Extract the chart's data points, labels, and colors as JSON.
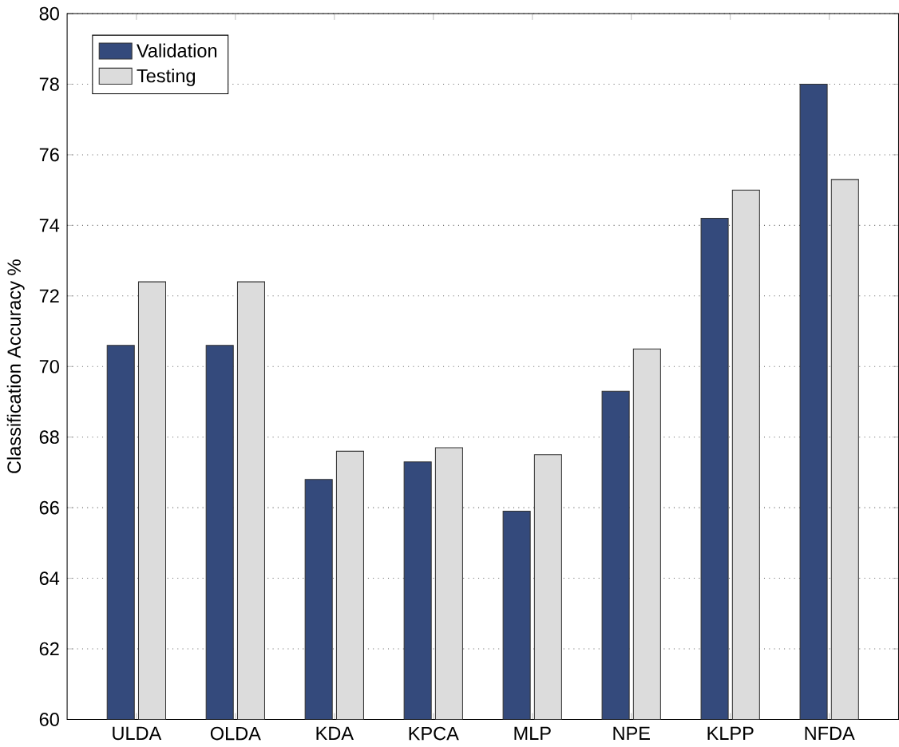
{
  "chart_data": {
    "type": "bar",
    "ylabel": "Classification Accuracy %",
    "categories": [
      "ULDA",
      "OLDA",
      "KDA",
      "KPCA",
      "MLP",
      "NPE",
      "KLPP",
      "NFDA"
    ],
    "series": [
      {
        "name": "Validation",
        "color": "#344a7c",
        "values": [
          70.6,
          70.6,
          66.8,
          67.3,
          65.9,
          69.3,
          74.2,
          78.0
        ]
      },
      {
        "name": "Testing",
        "color": "#dcdcdc",
        "values": [
          72.4,
          72.4,
          67.6,
          67.7,
          67.5,
          70.5,
          75.0,
          75.3
        ]
      }
    ],
    "ylim": [
      60,
      80
    ],
    "yticks": [
      60,
      62,
      64,
      66,
      68,
      70,
      72,
      74,
      76,
      78,
      80
    ],
    "grid": "y",
    "legend": "top left"
  }
}
